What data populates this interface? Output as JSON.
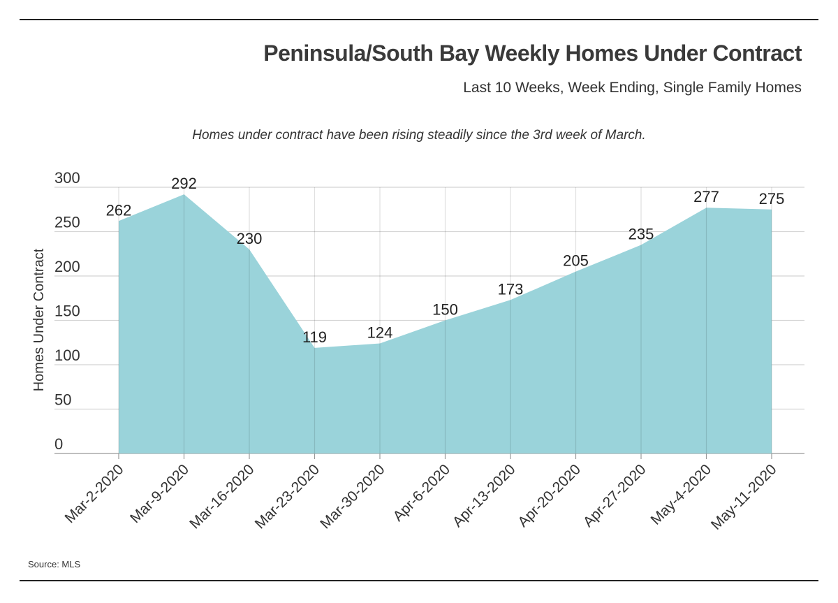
{
  "header": {
    "title": "Peninsula/South Bay Weekly Homes Under Contract",
    "subtitle": "Last 10 Weeks, Week Ending, Single Family Homes"
  },
  "annotation": "Homes under contract have been rising steadily since the 3rd week of March.",
  "source": "Source: MLS",
  "colors": {
    "area": "#9ad3da",
    "grid": "#d4d4d4",
    "text": "#222222"
  },
  "chart_data": {
    "type": "area",
    "title": "Peninsula/South Bay Weekly Homes Under Contract",
    "subtitle": "Last 10 Weeks, Week Ending, Single Family Homes",
    "ylabel": "Homes Under Contract",
    "xlabel": "",
    "ylim": [
      0,
      300
    ],
    "yticks": [
      0,
      50,
      100,
      150,
      200,
      250,
      300
    ],
    "grid": true,
    "categories": [
      "Mar-2-2020",
      "Mar-9-2020",
      "Mar-16-2020",
      "Mar-23-2020",
      "Mar-30-2020",
      "Apr-6-2020",
      "Apr-13-2020",
      "Apr-20-2020",
      "Apr-27-2020",
      "May-4-2020",
      "May-11-2020"
    ],
    "values": [
      262,
      292,
      230,
      119,
      124,
      150,
      173,
      205,
      235,
      277,
      275
    ]
  }
}
